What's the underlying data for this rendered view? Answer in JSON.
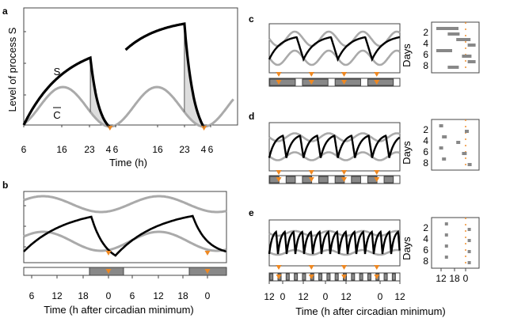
{
  "colors": {
    "s_curve": "#000000",
    "c_curve": "#aaaaaa",
    "shade": "#dddddd",
    "marker": "#ee8822",
    "sleep_bar": "#888888",
    "frame": "#444444"
  },
  "chart_data": [
    {
      "panel": "a",
      "type": "line",
      "ylabel": "Level of process S",
      "xlabel": "Time (h)",
      "x_ticks": [
        "6",
        "16",
        "23",
        "4",
        "6",
        "16",
        "23",
        "4",
        "6"
      ],
      "labels": {
        "s": "S",
        "c": "C"
      },
      "series": [
        {
          "name": "S",
          "description": "rises during wake, decays during sleep; second cycle after extended wake"
        },
        {
          "name": "C",
          "description": "circadian threshold oscillation"
        }
      ],
      "circadian_minimum_markers": 2
    },
    {
      "panel": "b",
      "type": "line",
      "xlabel": "Time (h after circadian minimum)",
      "x_ticks": [
        "6",
        "12",
        "18",
        "0",
        "6",
        "12",
        "18",
        "0"
      ],
      "series": [
        {
          "name": "upper threshold"
        },
        {
          "name": "lower threshold"
        },
        {
          "name": "S"
        }
      ],
      "sleep_bars": 2,
      "circadian_minimum_markers": 2
    },
    {
      "panel": "c",
      "type": "line",
      "raster_ylabel": "Days",
      "raster_y_ticks": [
        "2",
        "4",
        "6",
        "8"
      ],
      "sleep_episodes_per_day": 1
    },
    {
      "panel": "d",
      "type": "line",
      "raster_ylabel": "Days",
      "raster_y_ticks": [
        "2",
        "4",
        "6",
        "8"
      ],
      "sleep_episodes_per_day": 2
    },
    {
      "panel": "e",
      "type": "line",
      "raster_ylabel": "Days",
      "raster_y_ticks": [
        "2",
        "4",
        "6",
        "8"
      ],
      "sleep_episodes_per_day": 4,
      "xlabel": "Time (h after circadian minimum)",
      "x_ticks": [
        "12",
        "0",
        "12",
        "0",
        "12",
        "0",
        "12"
      ],
      "raster_x_ticks": [
        "12",
        "18",
        "0"
      ]
    }
  ]
}
